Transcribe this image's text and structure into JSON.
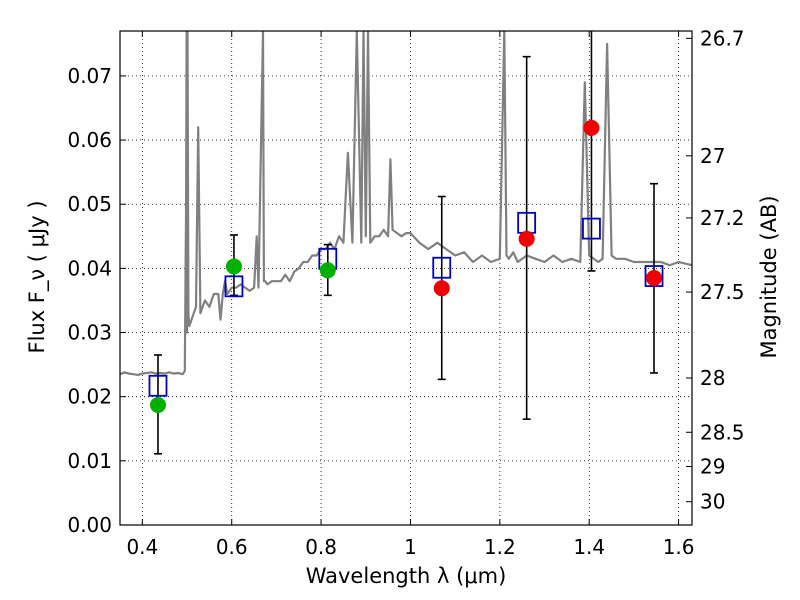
{
  "chart_data": {
    "type": "scatter",
    "title": "",
    "xlabel": "Wavelength  λ (μm)",
    "ylabel": "Flux  F_ν  ( μJy )",
    "ylabel_right": "Magnitude (AB)",
    "xlim": [
      0.35,
      1.63
    ],
    "ylim": [
      0.0,
      0.077
    ],
    "grid": true,
    "x_ticks": [
      {
        "value": 0.4,
        "label": "0.4"
      },
      {
        "value": 0.6,
        "label": "0.6"
      },
      {
        "value": 0.8,
        "label": "0.8"
      },
      {
        "value": 1.0,
        "label": "1"
      },
      {
        "value": 1.2,
        "label": "1.2"
      },
      {
        "value": 1.4,
        "label": "1.4"
      },
      {
        "value": 1.6,
        "label": "1.6"
      }
    ],
    "y_ticks": [
      {
        "value": 0.0,
        "label": "0.00"
      },
      {
        "value": 0.01,
        "label": "0.01"
      },
      {
        "value": 0.02,
        "label": "0.02"
      },
      {
        "value": 0.03,
        "label": "0.03"
      },
      {
        "value": 0.04,
        "label": "0.04"
      },
      {
        "value": 0.05,
        "label": "0.05"
      },
      {
        "value": 0.06,
        "label": "0.06"
      },
      {
        "value": 0.07,
        "label": "0.07"
      }
    ],
    "mag_ticks": [
      {
        "mag": 26.7,
        "label": "26.7"
      },
      {
        "mag": 27.0,
        "label": "27"
      },
      {
        "mag": 27.2,
        "label": "27.2"
      },
      {
        "mag": 27.5,
        "label": "27.5"
      },
      {
        "mag": 28.0,
        "label": "28"
      },
      {
        "mag": 28.5,
        "label": "28.5"
      },
      {
        "mag": 29.0,
        "label": "29"
      },
      {
        "mag": 30.0,
        "label": "30"
      }
    ],
    "colors": {
      "model_spectrum": "#808080",
      "model_photometry": "#0000cc",
      "detected": "#00b000",
      "upper": "#ee0000",
      "errorbar": "#000000",
      "grid": "#000000"
    },
    "series": [
      {
        "name": "Model spectrum",
        "style": "line",
        "x": [
          0.35,
          0.36,
          0.37,
          0.38,
          0.39,
          0.4,
          0.41,
          0.42,
          0.43,
          0.44,
          0.45,
          0.46,
          0.47,
          0.48,
          0.49,
          0.495,
          0.498,
          0.499,
          0.5,
          0.501,
          0.503,
          0.505,
          0.51,
          0.52,
          0.525,
          0.53,
          0.54,
          0.55,
          0.56,
          0.57,
          0.575,
          0.58,
          0.585,
          0.59,
          0.6,
          0.61,
          0.62,
          0.63,
          0.64,
          0.65,
          0.656,
          0.66,
          0.67,
          0.672,
          0.675,
          0.68,
          0.69,
          0.7,
          0.71,
          0.72,
          0.73,
          0.74,
          0.75,
          0.76,
          0.77,
          0.78,
          0.79,
          0.8,
          0.81,
          0.82,
          0.83,
          0.84,
          0.85,
          0.86,
          0.87,
          0.88,
          0.89,
          0.895,
          0.9,
          0.905,
          0.91,
          0.92,
          0.93,
          0.94,
          0.95,
          0.955,
          0.96,
          0.97,
          0.98,
          0.99,
          1.0,
          1.02,
          1.04,
          1.06,
          1.08,
          1.1,
          1.12,
          1.14,
          1.16,
          1.18,
          1.2,
          1.21,
          1.215,
          1.22,
          1.23,
          1.24,
          1.26,
          1.28,
          1.3,
          1.32,
          1.34,
          1.36,
          1.38,
          1.39,
          1.4,
          1.41,
          1.42,
          1.43,
          1.44,
          1.45,
          1.46,
          1.48,
          1.5,
          1.52,
          1.54,
          1.56,
          1.58,
          1.6,
          1.63
        ],
        "y": [
          0.0235,
          0.0238,
          0.0236,
          0.0235,
          0.0234,
          0.0236,
          0.0237,
          0.0238,
          0.0236,
          0.0237,
          0.0236,
          0.0238,
          0.0236,
          0.0237,
          0.0235,
          0.024,
          0.05,
          0.077,
          0.03,
          0.077,
          0.033,
          0.031,
          0.032,
          0.034,
          0.062,
          0.033,
          0.035,
          0.034,
          0.036,
          0.036,
          0.032,
          0.036,
          0.038,
          0.036,
          0.037,
          0.037,
          0.0375,
          0.037,
          0.0365,
          0.037,
          0.045,
          0.037,
          0.077,
          0.038,
          0.038,
          0.0375,
          0.038,
          0.038,
          0.038,
          0.039,
          0.038,
          0.0395,
          0.04,
          0.041,
          0.041,
          0.042,
          0.042,
          0.043,
          0.043,
          0.044,
          0.043,
          0.045,
          0.044,
          0.058,
          0.044,
          0.077,
          0.044,
          0.077,
          0.045,
          0.077,
          0.044,
          0.045,
          0.045,
          0.046,
          0.045,
          0.057,
          0.046,
          0.0455,
          0.045,
          0.0455,
          0.0455,
          0.044,
          0.043,
          0.044,
          0.043,
          0.042,
          0.0425,
          0.041,
          0.042,
          0.041,
          0.0415,
          0.077,
          0.042,
          0.0415,
          0.0425,
          0.041,
          0.042,
          0.0415,
          0.041,
          0.042,
          0.041,
          0.0415,
          0.041,
          0.069,
          0.042,
          0.0415,
          0.041,
          0.0415,
          0.075,
          0.042,
          0.0415,
          0.0415,
          0.041,
          0.041,
          0.041,
          0.041,
          0.0405,
          0.041,
          0.0405
        ]
      },
      {
        "name": "Model photometry",
        "style": "open-square",
        "x": [
          0.435,
          0.605,
          0.815,
          1.07,
          1.26,
          1.405,
          1.545
        ],
        "y": [
          0.0217,
          0.0372,
          0.0415,
          0.0401,
          0.0471,
          0.0462,
          0.0388
        ]
      },
      {
        "name": "Observed (detected)",
        "style": "filled-circle",
        "x": [
          0.435,
          0.605,
          0.815
        ],
        "y": [
          0.0187,
          0.0403,
          0.0397
        ],
        "yerr_low": [
          0.0111,
          0.0358,
          0.0358
        ],
        "yerr_high": [
          0.0265,
          0.0452,
          0.0437
        ]
      },
      {
        "name": "Observed (low S/N)",
        "style": "filled-circle",
        "x": [
          1.07,
          1.26,
          1.405,
          1.545
        ],
        "y": [
          0.0369,
          0.0446,
          0.0619,
          0.0385
        ],
        "yerr_low": [
          0.0227,
          0.0165,
          0.0396,
          0.0237
        ],
        "yerr_high": [
          0.0512,
          0.073,
          0.077,
          0.0532
        ]
      }
    ]
  }
}
